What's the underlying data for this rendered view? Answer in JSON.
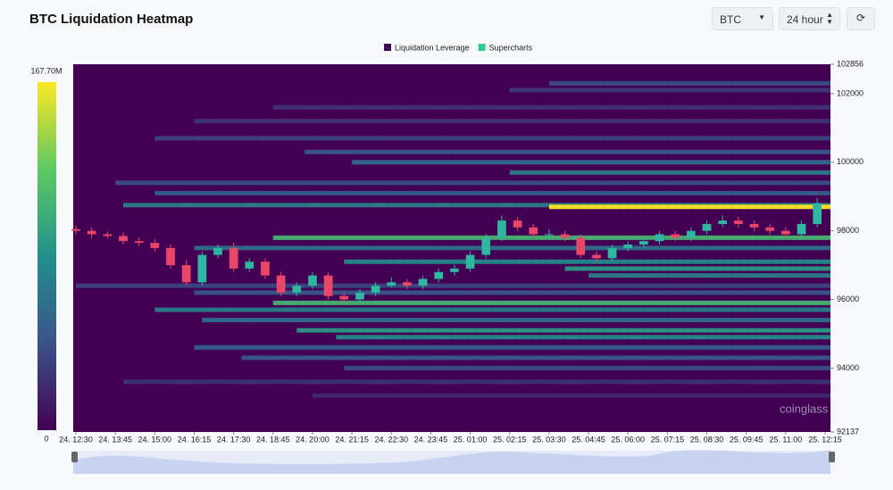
{
  "header": {
    "title": "BTC Liquidation Heatmap",
    "symbol": "BTC",
    "range": "24 hour"
  },
  "chart_data": {
    "type": "heatmap",
    "watermark": "coinglass",
    "legend": [
      "Liquidation Leverage",
      "Supercharts"
    ],
    "legend_colors": [
      "#3b0a55",
      "#2ecc8f"
    ],
    "colorbar": {
      "lim": [
        0,
        167.7
      ],
      "ticks": [
        0,
        {
          "value": 167.7,
          "label": "167.70M"
        }
      ]
    },
    "ylim": [
      92137,
      102856
    ],
    "yticks": [
      92137,
      94000,
      96000,
      98000,
      100000,
      102000,
      102856
    ],
    "xticks": [
      "24. 12:30",
      "24. 13:45",
      "24. 15:00",
      "24. 16:15",
      "24. 17:30",
      "24. 18:45",
      "24. 20:00",
      "24. 21:15",
      "24. 22:30",
      "24. 23:45",
      "25. 01:00",
      "25. 02:15",
      "25. 03:30",
      "25. 04:45",
      "25. 06:00",
      "25. 07:15",
      "25. 08:30",
      "25. 09:45",
      "25. 11:00",
      "25. 12:15"
    ],
    "bands": [
      {
        "price": 102300,
        "from": "25. 03:30",
        "value": 40
      },
      {
        "price": 102100,
        "from": "25. 02:15",
        "value": 30
      },
      {
        "price": 101600,
        "from": "24. 18:45",
        "value": 25
      },
      {
        "price": 101200,
        "from": "24. 16:15",
        "value": 25
      },
      {
        "price": 100700,
        "from": "24. 15:00",
        "value": 35
      },
      {
        "price": 100300,
        "from": "24. 19:45",
        "value": 45
      },
      {
        "price": 100000,
        "from": "24. 21:15",
        "value": 60
      },
      {
        "price": 99700,
        "from": "25. 02:15",
        "value": 70
      },
      {
        "price": 99400,
        "from": "24. 13:45",
        "value": 40
      },
      {
        "price": 99100,
        "from": "24. 15:00",
        "value": 50
      },
      {
        "price": 98750,
        "from": "24. 14:00",
        "value": 70
      },
      {
        "price": 98700,
        "from": "25. 03:30",
        "value": 167.7
      },
      {
        "price": 97800,
        "from": "24. 18:45",
        "value": 110
      },
      {
        "price": 97500,
        "from": "24. 16:15",
        "value": 60
      },
      {
        "price": 97100,
        "from": "24. 21:00",
        "value": 80
      },
      {
        "price": 96900,
        "from": "25. 04:00",
        "value": 90
      },
      {
        "price": 96700,
        "from": "25. 04:45",
        "value": 70
      },
      {
        "price": 96400,
        "from": "24. 12:30",
        "value": 35
      },
      {
        "price": 96200,
        "from": "24. 16:15",
        "value": 45
      },
      {
        "price": 95900,
        "from": "24. 18:45",
        "value": 110
      },
      {
        "price": 95700,
        "from": "24. 15:00",
        "value": 70
      },
      {
        "price": 95400,
        "from": "24. 16:30",
        "value": 60
      },
      {
        "price": 95100,
        "from": "24. 19:30",
        "value": 90
      },
      {
        "price": 94900,
        "from": "24. 20:45",
        "value": 80
      },
      {
        "price": 94600,
        "from": "24. 16:15",
        "value": 50
      },
      {
        "price": 94300,
        "from": "24. 17:45",
        "value": 45
      },
      {
        "price": 94000,
        "from": "24. 21:00",
        "value": 40
      },
      {
        "price": 93600,
        "from": "24. 14:00",
        "value": 25
      },
      {
        "price": 93200,
        "from": "24. 20:00",
        "value": 20
      }
    ],
    "candles": {
      "up_color": "#2fb7a2",
      "down_color": "#e8476a",
      "x": [
        "24. 12:30",
        "24. 13:00",
        "24. 13:30",
        "24. 14:00",
        "24. 14:30",
        "24. 15:00",
        "24. 15:30",
        "24. 16:00",
        "24. 16:30",
        "24. 17:00",
        "24. 17:30",
        "24. 18:00",
        "24. 18:30",
        "24. 19:00",
        "24. 19:30",
        "24. 20:00",
        "24. 20:30",
        "24. 21:00",
        "24. 21:30",
        "24. 22:00",
        "24. 22:30",
        "24. 23:00",
        "24. 23:30",
        "25. 00:00",
        "25. 00:30",
        "25. 01:00",
        "25. 01:30",
        "25. 02:00",
        "25. 02:30",
        "25. 03:00",
        "25. 03:30",
        "25. 04:00",
        "25. 04:30",
        "25. 05:00",
        "25. 05:30",
        "25. 06:00",
        "25. 06:30",
        "25. 07:00",
        "25. 07:30",
        "25. 08:00",
        "25. 08:30",
        "25. 09:00",
        "25. 09:30",
        "25. 10:00",
        "25. 10:30",
        "25. 11:00",
        "25. 11:30",
        "25. 12:00"
      ],
      "open": [
        98050,
        98000,
        97900,
        97850,
        97700,
        97650,
        97500,
        97000,
        96500,
        97300,
        97500,
        96900,
        97100,
        96700,
        96200,
        96400,
        96700,
        96100,
        96000,
        96200,
        96400,
        96500,
        96400,
        96600,
        96800,
        96900,
        97300,
        97800,
        98300,
        98100,
        97900,
        97900,
        97800,
        97300,
        97200,
        97500,
        97600,
        97700,
        97900,
        97800,
        98000,
        98200,
        98300,
        98200,
        98100,
        98000,
        97900,
        98200
      ],
      "high": [
        98150,
        98100,
        97980,
        97950,
        97800,
        97750,
        97600,
        97150,
        97400,
        97600,
        97650,
        97200,
        97200,
        96800,
        96500,
        96800,
        96800,
        96200,
        96300,
        96500,
        96650,
        96600,
        96700,
        96900,
        97000,
        97400,
        97900,
        98450,
        98400,
        98200,
        98050,
        98000,
        97900,
        97400,
        97600,
        97700,
        97800,
        98000,
        98000,
        98100,
        98300,
        98450,
        98400,
        98300,
        98200,
        98100,
        98300,
        98950
      ],
      "low": [
        97900,
        97800,
        97780,
        97600,
        97550,
        97400,
        96900,
        96400,
        96400,
        97200,
        96800,
        96800,
        96600,
        96100,
        96100,
        96300,
        96000,
        95900,
        95900,
        96100,
        96350,
        96300,
        96300,
        96500,
        96700,
        96800,
        97200,
        97700,
        98000,
        97800,
        97800,
        97700,
        97200,
        97100,
        97100,
        97400,
        97500,
        97600,
        97700,
        97700,
        97900,
        98100,
        98100,
        98000,
        97900,
        97800,
        97800,
        98100
      ],
      "close": [
        98000,
        97900,
        97850,
        97700,
        97650,
        97500,
        97000,
        96500,
        97300,
        97500,
        96900,
        97100,
        96700,
        96200,
        96400,
        96700,
        96100,
        96000,
        96200,
        96400,
        96500,
        96400,
        96600,
        96800,
        96900,
        97300,
        97800,
        98300,
        98100,
        97900,
        97900,
        97800,
        97300,
        97200,
        97500,
        97600,
        97700,
        97900,
        97800,
        98000,
        98200,
        98300,
        98200,
        98100,
        98000,
        97900,
        98200,
        98800
      ]
    }
  }
}
